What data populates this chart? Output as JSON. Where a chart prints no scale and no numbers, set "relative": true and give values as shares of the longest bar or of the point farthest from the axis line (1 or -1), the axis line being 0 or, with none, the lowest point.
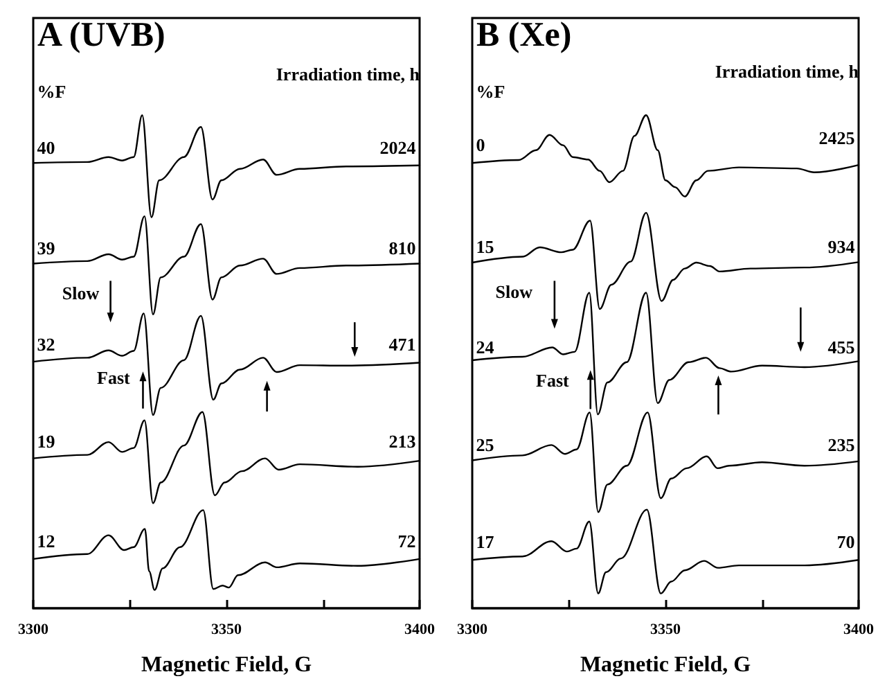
{
  "chart_data": [
    {
      "type": "line",
      "title": "A (UVB)",
      "xlabel": "Magnetic Field, G",
      "relative": true,
      "xlim": [
        3300,
        3400
      ],
      "xticks": [
        3300,
        3350,
        3400
      ],
      "series": [
        {
          "color": "#000000",
          "x": [
            3300,
            3314,
            3319.5,
            3323,
            3326,
            3328.2,
            3330.6,
            3332.6,
            3339,
            3343.4,
            3346.4,
            3348.7,
            3353.5,
            3359.5,
            3363,
            3369,
            3381,
            3400
          ],
          "values": [
            0.903,
            0.905,
            0.915,
            0.908,
            0.915,
            1.0,
            0.793,
            0.868,
            0.915,
            0.976,
            0.829,
            0.868,
            0.891,
            0.91,
            0.879,
            0.891,
            0.896,
            0.898
          ]
        },
        {
          "color": "#000000",
          "x": [
            3300,
            3314,
            3319.5,
            3323,
            3326,
            3328.8,
            3331,
            3333,
            3339,
            3343.4,
            3346.4,
            3348.7,
            3353.5,
            3359.5,
            3363,
            3369,
            3381,
            3400
          ],
          "values": [
            0.699,
            0.704,
            0.718,
            0.707,
            0.713,
            0.795,
            0.596,
            0.671,
            0.713,
            0.779,
            0.626,
            0.671,
            0.695,
            0.709,
            0.678,
            0.69,
            0.695,
            0.699
          ]
        },
        {
          "color": "#000000",
          "x": [
            3300,
            3314,
            3319.5,
            3323,
            3326,
            3328.6,
            3331,
            3333,
            3339,
            3343.4,
            3346.6,
            3348.7,
            3353.5,
            3359.5,
            3363,
            3369,
            3381,
            3400
          ],
          "values": [
            0.5,
            0.508,
            0.523,
            0.512,
            0.522,
            0.598,
            0.392,
            0.447,
            0.503,
            0.593,
            0.423,
            0.456,
            0.484,
            0.508,
            0.479,
            0.493,
            0.492,
            0.498
          ]
        },
        {
          "color": "#000000",
          "x": [
            3300,
            3314,
            3319.5,
            3323,
            3326,
            3328.8,
            3331,
            3333,
            3339,
            3343.8,
            3347,
            3349.5,
            3354,
            3360,
            3363.5,
            3369,
            3384,
            3400
          ],
          "values": [
            0.304,
            0.311,
            0.337,
            0.317,
            0.325,
            0.381,
            0.213,
            0.255,
            0.33,
            0.398,
            0.229,
            0.255,
            0.278,
            0.304,
            0.281,
            0.292,
            0.287,
            0.299
          ]
        },
        {
          "color": "#000000",
          "x": [
            3300,
            3314,
            3319.5,
            3323.5,
            3326,
            3328.9,
            3330,
            3331.4,
            3333.5,
            3338,
            3344,
            3346.6,
            3349,
            3350.6,
            3353,
            3360,
            3363,
            3369,
            3384,
            3400
          ],
          "values": [
            0.1,
            0.11,
            0.148,
            0.118,
            0.124,
            0.161,
            0.075,
            0.037,
            0.081,
            0.124,
            0.199,
            0.039,
            0.046,
            0.042,
            0.067,
            0.093,
            0.083,
            0.091,
            0.086,
            0.1
          ]
        }
      ],
      "annotations": [
        "%F",
        "Irradiation time, h",
        "40",
        "2024",
        "39",
        "810",
        "Slow",
        "32",
        "471",
        "Fast",
        "19",
        "213",
        "12",
        "72"
      ]
    },
    {
      "type": "line",
      "title": "B (Xe)",
      "xlabel": "Magnetic Field, G",
      "relative": true,
      "xlim": [
        3300,
        3400
      ],
      "xticks": [
        3300,
        3350,
        3400
      ],
      "series": [
        {
          "color": "#000000",
          "x": [
            3300,
            3312,
            3316.5,
            3320,
            3323.5,
            3326,
            3330,
            3333,
            3335.5,
            3339,
            3342,
            3345,
            3348,
            3350,
            3352.5,
            3355,
            3358,
            3361,
            3369,
            3384,
            3388.5,
            3400
          ],
          "values": [
            0.903,
            0.909,
            0.929,
            0.96,
            0.939,
            0.915,
            0.91,
            0.887,
            0.864,
            0.887,
            0.958,
            1.0,
            0.929,
            0.868,
            0.854,
            0.835,
            0.868,
            0.887,
            0.894,
            0.892,
            0.884,
            0.899
          ]
        },
        {
          "color": "#000000",
          "x": [
            3300,
            3313,
            3317.5,
            3323,
            3326,
            3330.5,
            3333,
            3336,
            3341,
            3345,
            3349,
            3352,
            3355,
            3358,
            3361.5,
            3364,
            3372,
            3386,
            3400
          ],
          "values": [
            0.701,
            0.713,
            0.732,
            0.722,
            0.727,
            0.786,
            0.607,
            0.656,
            0.703,
            0.802,
            0.623,
            0.666,
            0.689,
            0.701,
            0.694,
            0.683,
            0.689,
            0.691,
            0.702
          ]
        },
        {
          "color": "#000000",
          "x": [
            3300,
            3313,
            3320.7,
            3323.5,
            3326.5,
            3330.3,
            3332.5,
            3335,
            3340,
            3345,
            3348,
            3351,
            3356,
            3360.5,
            3364,
            3367,
            3375,
            3386,
            3400
          ],
          "values": [
            0.503,
            0.51,
            0.529,
            0.515,
            0.52,
            0.64,
            0.393,
            0.458,
            0.499,
            0.64,
            0.416,
            0.463,
            0.499,
            0.508,
            0.487,
            0.48,
            0.492,
            0.489,
            0.501
          ]
        },
        {
          "color": "#000000",
          "x": [
            3300,
            3313,
            3320.5,
            3324,
            3327,
            3330.4,
            3332.6,
            3335,
            3340,
            3345.4,
            3348.8,
            3351.5,
            3355.5,
            3360.7,
            3363.5,
            3366.5,
            3375,
            3386,
            3400
          ],
          "values": [
            0.3,
            0.31,
            0.331,
            0.313,
            0.322,
            0.397,
            0.195,
            0.251,
            0.289,
            0.397,
            0.223,
            0.263,
            0.284,
            0.308,
            0.284,
            0.289,
            0.296,
            0.289,
            0.298
          ]
        },
        {
          "color": "#000000",
          "x": [
            3300,
            3313,
            3320.5,
            3324.5,
            3327,
            3330.3,
            3332.6,
            3334.6,
            3338.5,
            3345.2,
            3348.8,
            3351.5,
            3355,
            3360,
            3363.6,
            3369,
            3386,
            3400
          ],
          "values": [
            0.098,
            0.105,
            0.136,
            0.115,
            0.121,
            0.176,
            0.03,
            0.073,
            0.101,
            0.2,
            0.03,
            0.054,
            0.077,
            0.096,
            0.082,
            0.087,
            0.087,
            0.098
          ]
        }
      ],
      "annotations": [
        "%F",
        "Irradiation time, h",
        "0",
        "2425",
        "15",
        "934",
        "Slow",
        "24",
        "455",
        "Fast",
        "25",
        "235",
        "17",
        "70"
      ]
    }
  ]
}
